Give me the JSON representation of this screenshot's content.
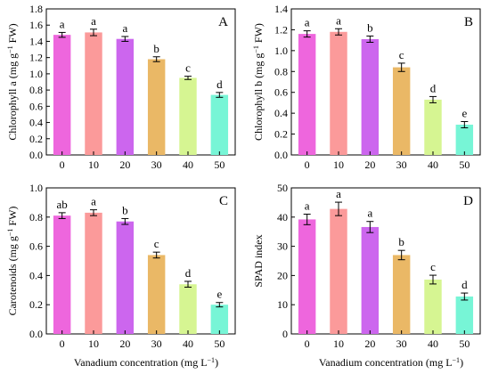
{
  "chart_data": [
    {
      "panel": "A",
      "type": "bar",
      "categories": [
        "0",
        "10",
        "20",
        "30",
        "40",
        "50"
      ],
      "values": [
        1.48,
        1.51,
        1.43,
        1.18,
        0.95,
        0.74
      ],
      "errors": [
        0.03,
        0.04,
        0.03,
        0.03,
        0.02,
        0.03
      ],
      "letters": [
        "a",
        "a",
        "a",
        "b",
        "c",
        "d"
      ],
      "ylabel": "Chlorophyll a (mg g−1 FW)",
      "xlabel": "",
      "ylim": [
        0,
        1.8
      ],
      "yticks": [
        "0.0",
        "0.2",
        "0.4",
        "0.6",
        "0.8",
        "1.0",
        "1.2",
        "1.4",
        "1.6",
        "1.8"
      ],
      "ytick_values": [
        0,
        0.2,
        0.4,
        0.6,
        0.8,
        1.0,
        1.2,
        1.4,
        1.6,
        1.8
      ],
      "colors": [
        "#ee66dd",
        "#fb9a9a",
        "#cc66ee",
        "#eab866",
        "#d6f592",
        "#77f5d6"
      ]
    },
    {
      "panel": "B",
      "type": "bar",
      "categories": [
        "0",
        "10",
        "20",
        "30",
        "40",
        "50"
      ],
      "values": [
        1.16,
        1.18,
        1.11,
        0.84,
        0.53,
        0.29
      ],
      "errors": [
        0.03,
        0.03,
        0.03,
        0.04,
        0.03,
        0.03
      ],
      "letters": [
        "a",
        "a",
        "b",
        "c",
        "d",
        "e"
      ],
      "ylabel": "Chlorophyll b (mg g−1 FW)",
      "xlabel": "",
      "ylim": [
        0,
        1.4
      ],
      "yticks": [
        "0.0",
        "0.2",
        "0.4",
        "0.6",
        "0.8",
        "1.0",
        "1.2",
        "1.4"
      ],
      "ytick_values": [
        0,
        0.2,
        0.4,
        0.6,
        0.8,
        1.0,
        1.2,
        1.4
      ],
      "colors": [
        "#ee66dd",
        "#fb9a9a",
        "#cc66ee",
        "#eab866",
        "#d6f592",
        "#77f5d6"
      ]
    },
    {
      "panel": "C",
      "type": "bar",
      "categories": [
        "0",
        "10",
        "20",
        "30",
        "40",
        "50"
      ],
      "values": [
        0.81,
        0.83,
        0.77,
        0.54,
        0.34,
        0.2
      ],
      "errors": [
        0.02,
        0.02,
        0.02,
        0.02,
        0.02,
        0.015
      ],
      "letters": [
        "ab",
        "a",
        "b",
        "c",
        "d",
        "e"
      ],
      "ylabel": "Carotenoids (mg g−1 FW)",
      "xlabel": "Vanadium concentration (mg L−1)",
      "ylim": [
        0,
        1.0
      ],
      "yticks": [
        "0.0",
        "0.2",
        "0.4",
        "0.6",
        "0.8",
        "1.0"
      ],
      "ytick_values": [
        0,
        0.2,
        0.4,
        0.6,
        0.8,
        1.0
      ],
      "colors": [
        "#ee66dd",
        "#fb9a9a",
        "#cc66ee",
        "#eab866",
        "#d6f592",
        "#77f5d6"
      ]
    },
    {
      "panel": "D",
      "type": "bar",
      "categories": [
        "0",
        "10",
        "20",
        "30",
        "40",
        "50"
      ],
      "values": [
        39.2,
        42.8,
        36.6,
        27.0,
        18.6,
        12.8
      ],
      "errors": [
        1.8,
        2.3,
        1.9,
        1.6,
        1.5,
        1.2
      ],
      "letters": [
        "a",
        "a",
        "a",
        "b",
        "c",
        "d"
      ],
      "ylabel": "SPAD index",
      "xlabel": "Vanadium concentration (mg L−1)",
      "ylim": [
        0,
        50
      ],
      "yticks": [
        "0",
        "10",
        "20",
        "30",
        "40",
        "50"
      ],
      "ytick_values": [
        0,
        10,
        20,
        30,
        40,
        50
      ],
      "colors": [
        "#ee66dd",
        "#fb9a9a",
        "#cc66ee",
        "#eab866",
        "#d6f592",
        "#77f5d6"
      ]
    }
  ]
}
